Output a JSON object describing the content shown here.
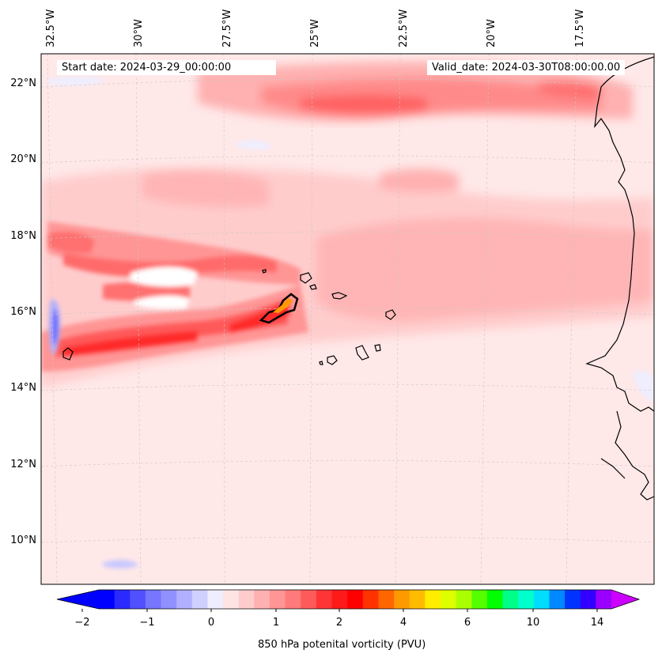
{
  "header": {
    "start_date": "Start date: 2024-03-29_00:00:00",
    "valid_date": "Valid_date: 2024-03-30T08:00:00.00"
  },
  "lon_labels": [
    "32.5°W",
    "30°W",
    "27.5°W",
    "25°W",
    "22.5°W",
    "20°W",
    "17.5°W"
  ],
  "lat_labels": [
    "22°N",
    "20°N",
    "18°N",
    "16°N",
    "14°N",
    "12°N",
    "10°N"
  ],
  "colorbar": {
    "title": "850 hPa potenital vorticity (PVU)",
    "tick_labels": [
      "−2",
      "−1",
      "0",
      "1",
      "2",
      "4",
      "6",
      "10",
      "14"
    ],
    "colors": [
      "#0000ff",
      "#2a2aff",
      "#5050ff",
      "#7676ff",
      "#9090ff",
      "#b0b0ff",
      "#d0d0ff",
      "#eeeeff",
      "#ffe4e4",
      "#ffcccc",
      "#ffb0b0",
      "#ff9595",
      "#ff7a7a",
      "#ff5a5a",
      "#ff3535",
      "#ff1a1a",
      "#ff0000",
      "#ff3300",
      "#ff6600",
      "#ff9900",
      "#ffbb00",
      "#ffee00",
      "#ddff00",
      "#aaff00",
      "#55ff00",
      "#00ff00",
      "#00ff88",
      "#00ffcc",
      "#00ddff",
      "#0088ff",
      "#0033ff",
      "#3300ff",
      "#9900ff"
    ],
    "extend_min_color": "#0000ff",
    "extend_max_color": "#cc00ff"
  },
  "map": {
    "background_color": "#ffe8e8",
    "coastline_color": "#000000"
  }
}
